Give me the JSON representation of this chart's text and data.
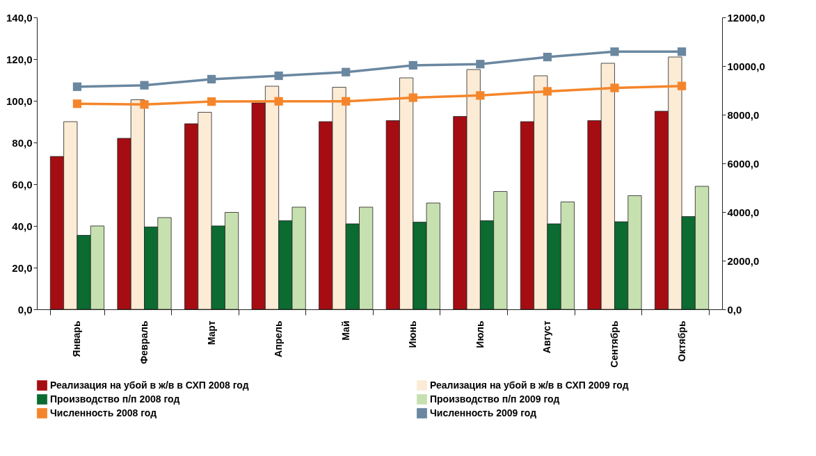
{
  "chart_data": {
    "type": "bar",
    "categories": [
      "Январь",
      "Февраль",
      "Март",
      "Апрель",
      "Май",
      "Июнь",
      "Июль",
      "Август",
      "Сентябрь",
      "Октябрь"
    ],
    "series": [
      {
        "name": "Реализация на убой в ж/в в СХП 2008 год",
        "color": "#a50d12",
        "values": [
          73.3,
          82,
          89,
          99,
          90,
          90.5,
          92.5,
          90,
          90.5,
          95
        ]
      },
      {
        "name": "Реализация на убой в ж/в в СХП 2009 год",
        "color": "#fcebd5",
        "values": [
          90,
          100.5,
          94.5,
          107,
          106.5,
          111,
          115,
          112,
          118,
          121
        ]
      },
      {
        "name": "Производство п/п 2008 год",
        "color": "#0b6b31",
        "values": [
          35.5,
          39.5,
          40,
          42.5,
          41,
          41.8,
          42.5,
          41,
          42,
          44.5
        ]
      },
      {
        "name": "Производство п/п  2009 год",
        "color": "#c7e0b0",
        "values": [
          40,
          44,
          46.5,
          49,
          49,
          51,
          56.5,
          51.5,
          54.5,
          59
        ]
      },
      {
        "name": "Численность 2008 год",
        "color": "#f5852a",
        "type": "line",
        "axis": "y2",
        "values": [
          8450,
          8420,
          8540,
          8550,
          8550,
          8700,
          8790,
          8960,
          9100,
          9180
        ]
      },
      {
        "name": "Численность 2009 год",
        "color": "#6a87a0",
        "type": "line",
        "axis": "y2",
        "values": [
          9150,
          9210,
          9460,
          9600,
          9750,
          10030,
          10080,
          10370,
          10590,
          10590
        ]
      }
    ],
    "ylim": [
      0,
      140
    ],
    "yticks": [
      {
        "value": 0,
        "label": "0,0"
      },
      {
        "value": 20,
        "label": "20,0"
      },
      {
        "value": 40,
        "label": "40,0"
      },
      {
        "value": 60,
        "label": "60,0"
      },
      {
        "value": 80,
        "label": "80,0"
      },
      {
        "value": 100,
        "label": "100,0"
      },
      {
        "value": 120,
        "label": "120,0"
      },
      {
        "value": 140,
        "label": "140,0"
      }
    ],
    "y2lim": [
      0,
      12000
    ],
    "y2ticks": [
      {
        "value": 0,
        "label": "0,0"
      },
      {
        "value": 2000,
        "label": "2000,0"
      },
      {
        "value": 4000,
        "label": "4000,0"
      },
      {
        "value": 6000,
        "label": "6000,0"
      },
      {
        "value": 8000,
        "label": "8000,0"
      },
      {
        "value": 10000,
        "label": "10000,0"
      },
      {
        "value": 12000,
        "label": "12000,0"
      }
    ],
    "legend": "bottom",
    "marker": "square",
    "grid": false
  }
}
